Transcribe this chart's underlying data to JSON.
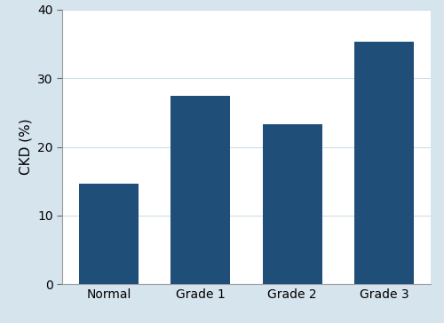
{
  "categories": [
    "Normal",
    "Grade 1",
    "Grade 2",
    "Grade 3"
  ],
  "values": [
    14.7,
    27.5,
    23.3,
    35.3
  ],
  "bar_color": "#1f4e79",
  "ylabel": "CKD (%)",
  "ylim": [
    0,
    40
  ],
  "yticks": [
    0,
    10,
    20,
    30,
    40
  ],
  "background_color": "#d6e4ee",
  "plot_bg_color": "#ffffff",
  "bar_width": 0.65,
  "grid_color": "#d0dde8",
  "tick_fontsize": 10,
  "label_fontsize": 11
}
